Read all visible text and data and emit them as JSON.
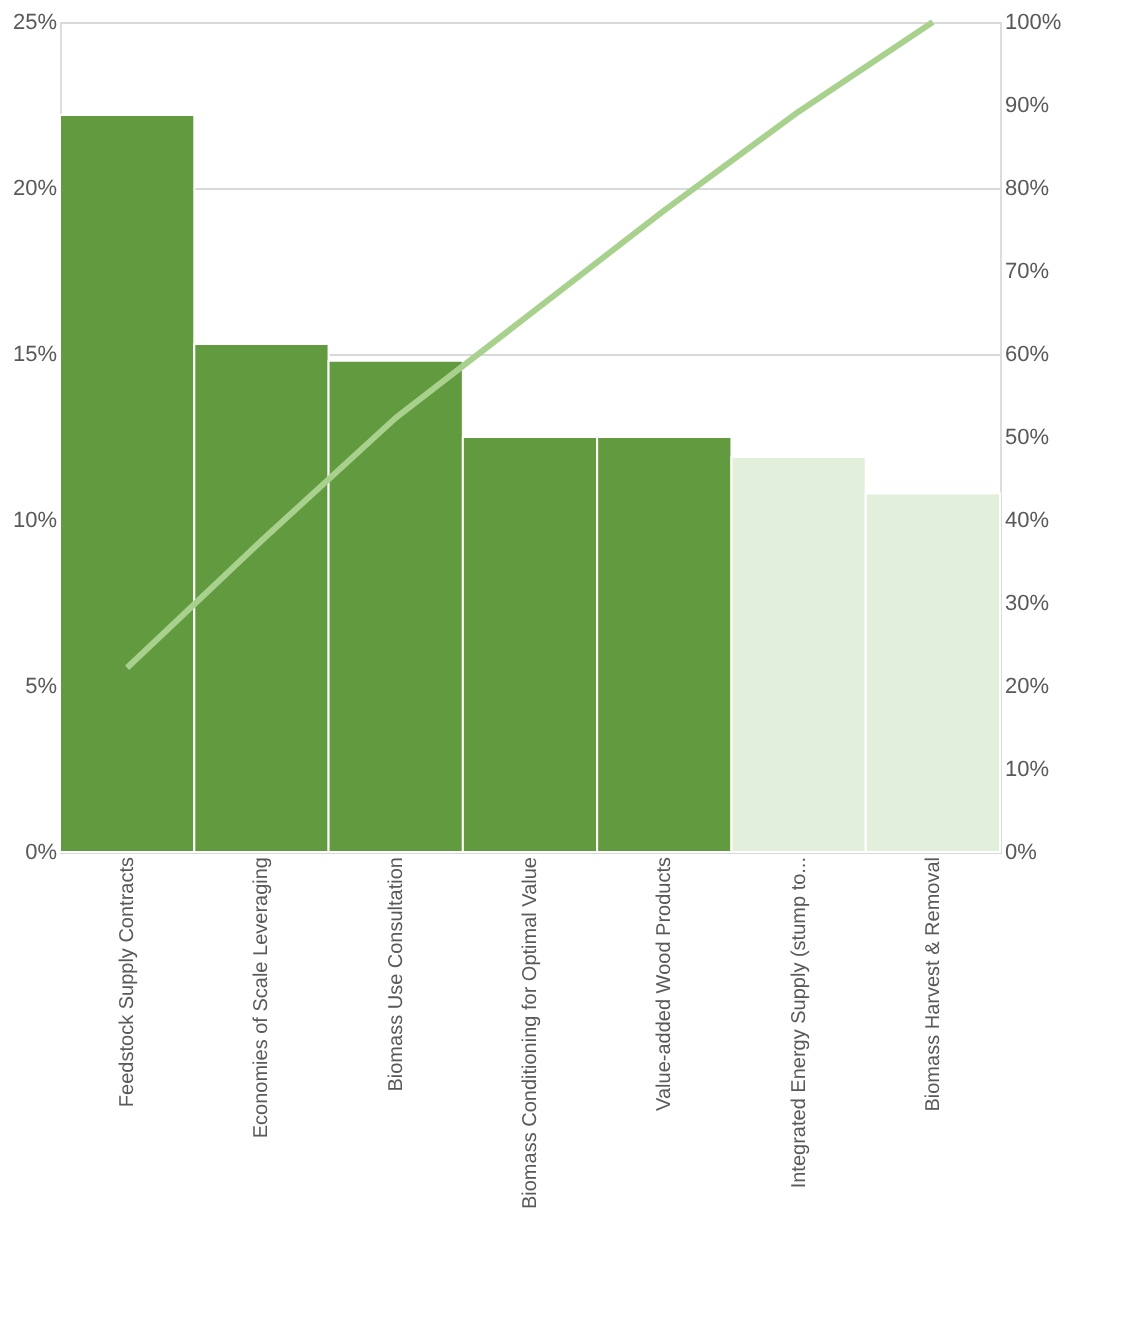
{
  "chart_data": {
    "type": "bar",
    "categories": [
      "Feedstock Supply Contracts",
      "Economies of Scale Leveraging",
      "Biomass Use Consultation",
      "Biomass Conditioning for Optimal Value",
      "Value-added Wood Products",
      "Integrated Energy Supply (stump to...",
      "Biomass Harvest & Removal"
    ],
    "series": [
      {
        "values": [
          22.2,
          15.3,
          14.8,
          12.5,
          12.5,
          11.9,
          10.8
        ],
        "colors": [
          "#629b3f",
          "#629b3f",
          "#629b3f",
          "#629b3f",
          "#629b3f",
          "#e2efda",
          "#e2efda"
        ]
      },
      {
        "type": "line",
        "axis": "y2",
        "color": "#a9d18e",
        "values": [
          22.2,
          37.5,
          52.3,
          64.8,
          77.3,
          89.2,
          100
        ]
      }
    ],
    "ylim": [
      0,
      25
    ],
    "yticks": [
      {
        "value": 0,
        "label": "0%"
      },
      {
        "value": 5,
        "label": "5%"
      },
      {
        "value": 10,
        "label": "10%"
      },
      {
        "value": 15,
        "label": "15%"
      },
      {
        "value": 20,
        "label": "20%"
      },
      {
        "value": 25,
        "label": "25%"
      }
    ],
    "y2lim": [
      0,
      100
    ],
    "y2ticks": [
      {
        "value": 0,
        "label": "0%"
      },
      {
        "value": 10,
        "label": "10%"
      },
      {
        "value": 20,
        "label": "20%"
      },
      {
        "value": 30,
        "label": "30%"
      },
      {
        "value": 40,
        "label": "40%"
      },
      {
        "value": 50,
        "label": "50%"
      },
      {
        "value": 60,
        "label": "60%"
      },
      {
        "value": 70,
        "label": "70%"
      },
      {
        "value": 80,
        "label": "80%"
      },
      {
        "value": 90,
        "label": "90%"
      },
      {
        "value": 100,
        "label": "100%"
      }
    ],
    "grid": "y",
    "line_style": "solid",
    "marker": "none"
  }
}
